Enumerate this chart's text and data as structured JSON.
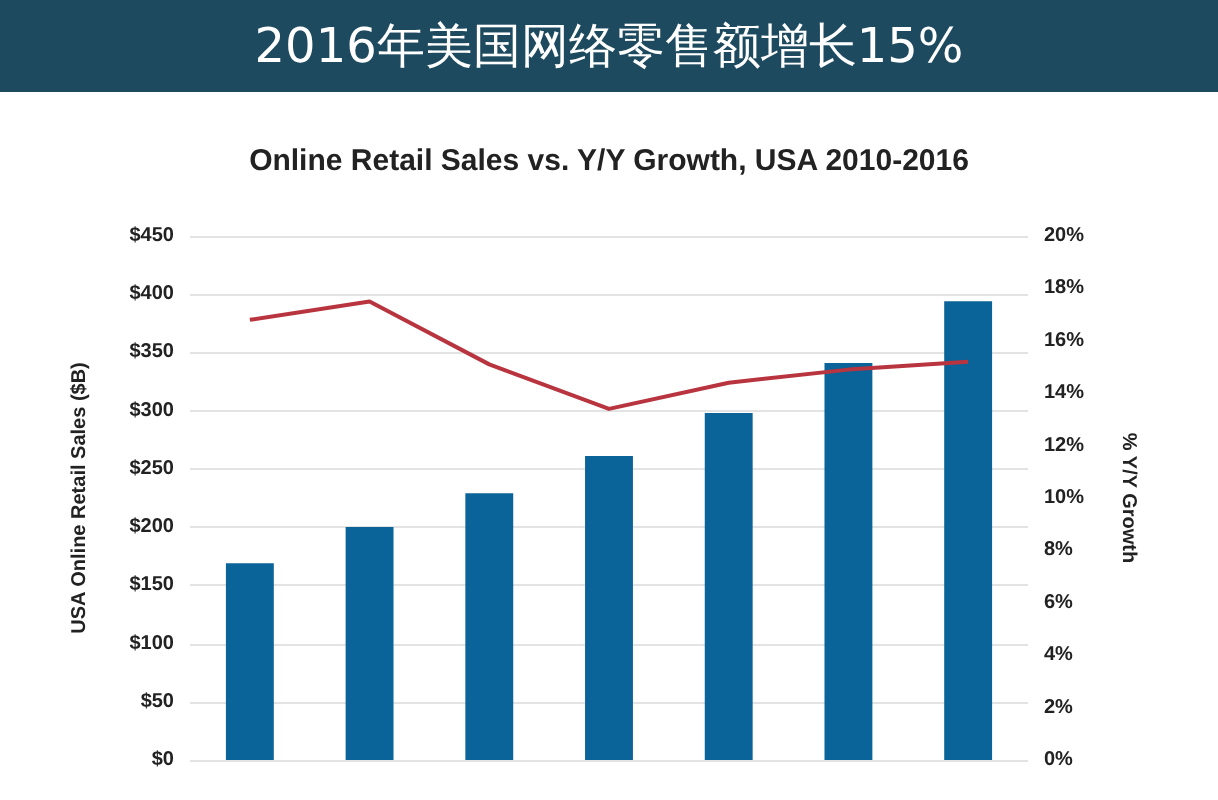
{
  "chart_data": {
    "type": "bar",
    "title": "2016年美国网络零售额增长15%",
    "subtitle": "Online Retail Sales vs. Y/Y Growth, USA 2010-2016",
    "ylabel": "USA Online Retail Sales ($B)",
    "y2label": "% Y/Y Growth",
    "categories": [
      null,
      null,
      null,
      null,
      null,
      null,
      null
    ],
    "series": [
      {
        "color": "#0a6399",
        "values": [
          169,
          200,
          229,
          261,
          298,
          341,
          394
        ]
      },
      {
        "type": "line",
        "axis": "y2",
        "color": "#b8343f",
        "values": [
          16.8,
          17.5,
          15.1,
          13.4,
          14.4,
          14.9,
          15.2
        ]
      }
    ],
    "ylim": [
      0,
      450
    ],
    "yticks": [
      {
        "value": 0,
        "label": "$0"
      },
      {
        "value": 50,
        "label": "$50"
      },
      {
        "value": 100,
        "label": "$100"
      },
      {
        "value": 150,
        "label": "$150"
      },
      {
        "value": 200,
        "label": "$200"
      },
      {
        "value": 250,
        "label": "$250"
      },
      {
        "value": 300,
        "label": "$300"
      },
      {
        "value": 350,
        "label": "$350"
      },
      {
        "value": 400,
        "label": "$400"
      },
      {
        "value": 450,
        "label": "$450"
      }
    ],
    "y2lim": [
      0,
      20
    ],
    "y2ticks": [
      {
        "value": 0,
        "label": "0%"
      },
      {
        "value": 2,
        "label": "2%"
      },
      {
        "value": 4,
        "label": "4%"
      },
      {
        "value": 6,
        "label": "6%"
      },
      {
        "value": 8,
        "label": "8%"
      },
      {
        "value": 10,
        "label": "10%"
      },
      {
        "value": 12,
        "label": "12%"
      },
      {
        "value": 14,
        "label": "14%"
      },
      {
        "value": 16,
        "label": "16%"
      },
      {
        "value": 18,
        "label": "18%"
      },
      {
        "value": 20,
        "label": "20%"
      }
    ],
    "grid": "y",
    "marker": "none",
    "line_style": "solid"
  }
}
